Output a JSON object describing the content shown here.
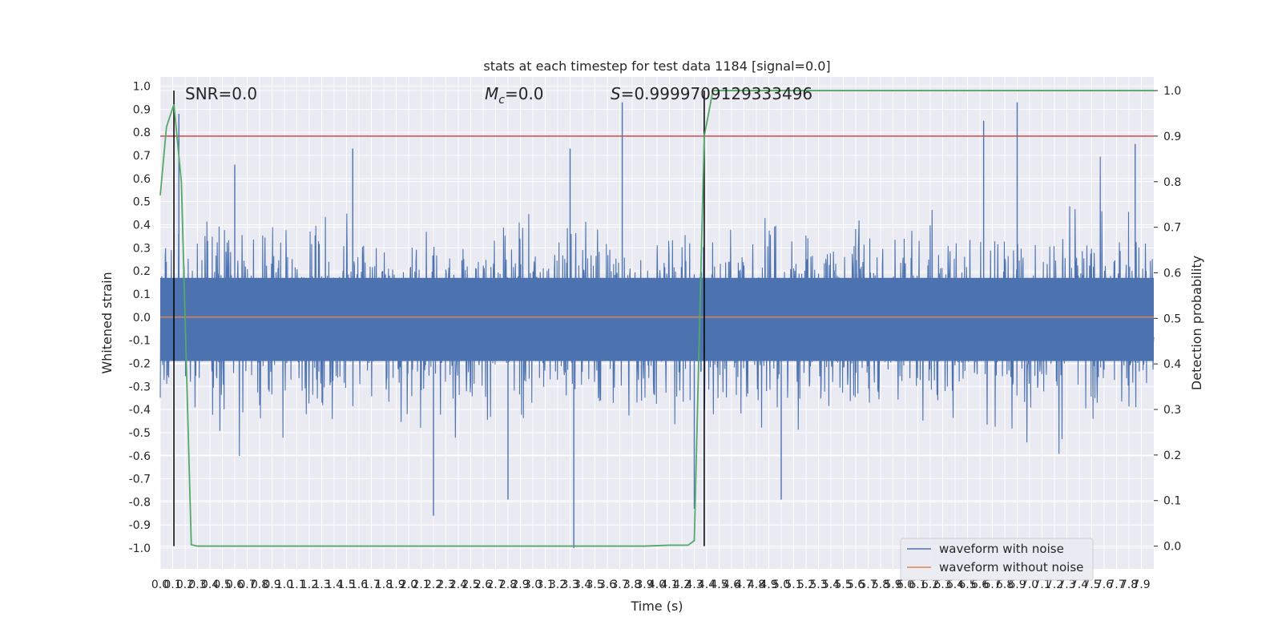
{
  "chart_data": {
    "type": "line",
    "title": "stats at each timestep for test data 1184 [signal=0.0]",
    "xlabel": "Time (s)",
    "ylabel_left": "Whitened strain",
    "ylabel_right": "Detection probability",
    "xlim": [
      0.0,
      8.0
    ],
    "ylim_left": [
      -1.09,
      1.04
    ],
    "ylim_right": [
      -0.05,
      1.03
    ],
    "x_ticks": [
      "0.0",
      "0.1",
      "0.2",
      "0.3",
      "0.4",
      "0.5",
      "0.6",
      "0.7",
      "0.8",
      "0.9",
      "1.0",
      "1.1",
      "1.2",
      "1.3",
      "1.4",
      "1.5",
      "1.6",
      "1.7",
      "1.8",
      "1.9",
      "2.0",
      "2.1",
      "2.2",
      "2.3",
      "2.4",
      "2.5",
      "2.6",
      "2.7",
      "2.8",
      "2.9",
      "3.0",
      "3.1",
      "3.2",
      "3.3",
      "3.4",
      "3.5",
      "3.6",
      "3.7",
      "3.8",
      "3.9",
      "4.0",
      "4.1",
      "4.2",
      "4.3",
      "4.4",
      "4.5",
      "4.6",
      "4.7",
      "4.8",
      "4.9",
      "5.0",
      "5.1",
      "5.2",
      "5.3",
      "5.4",
      "5.5",
      "5.6",
      "5.7",
      "5.8",
      "5.9",
      "6.0",
      "6.1",
      "6.2",
      "6.3",
      "6.4",
      "6.5",
      "6.6",
      "6.7",
      "6.8",
      "6.9",
      "7.0",
      "7.1",
      "7.2",
      "7.3",
      "7.4",
      "7.5",
      "7.6",
      "7.7",
      "7.8",
      "7.9"
    ],
    "y_ticks_left": [
      "1.0",
      "0.9",
      "0.8",
      "0.7",
      "0.6",
      "0.5",
      "0.4",
      "0.3",
      "0.2",
      "0.1",
      "0.0",
      "-0.1",
      "-0.2",
      "-0.3",
      "-0.4",
      "-0.5",
      "-0.6",
      "-0.7",
      "-0.8",
      "-0.9",
      "-1.0"
    ],
    "y_ticks_right": [
      "1.0",
      "0.9",
      "0.8",
      "0.7",
      "0.6",
      "0.5",
      "0.4",
      "0.3",
      "0.2",
      "0.1",
      "0.0"
    ],
    "annotations": {
      "snr": "SNR=0.0",
      "mc": "=0.0",
      "mc_symbol": "M",
      "mc_sub": "c",
      "s": "=0.9999709129333496",
      "s_symbol": "S"
    },
    "legend": {
      "placement": "lower right",
      "entries": [
        "waveform with noise",
        "waveform without noise"
      ]
    },
    "threshold_y_right": 0.9,
    "vertical_lines_x": [
      0.11,
      4.38
    ],
    "series": [
      {
        "name": "waveform with noise",
        "color": "#4c72b0",
        "kind": "noise",
        "x_range": [
          0.0,
          8.0
        ],
        "typical_envelope": [
          -0.42,
          0.42
        ],
        "extreme_peaks": [
          {
            "x": 0.15,
            "y": 0.88
          },
          {
            "x": 0.6,
            "y": 0.66
          },
          {
            "x": 1.55,
            "y": 0.73
          },
          {
            "x": 2.2,
            "y": -0.86
          },
          {
            "x": 2.8,
            "y": -0.79
          },
          {
            "x": 3.3,
            "y": 0.73
          },
          {
            "x": 3.33,
            "y": -1.0
          },
          {
            "x": 3.72,
            "y": 0.93
          },
          {
            "x": 4.3,
            "y": -0.83
          },
          {
            "x": 5.0,
            "y": -0.79
          },
          {
            "x": 6.63,
            "y": 0.85
          },
          {
            "x": 6.9,
            "y": 0.93
          },
          {
            "x": 7.85,
            "y": 0.75
          }
        ]
      },
      {
        "name": "waveform without noise",
        "color": "#dd8452",
        "x": [
          0.0,
          8.0
        ],
        "y": [
          0.0,
          0.0
        ]
      },
      {
        "name": "",
        "color": "#55a868",
        "axis": "right",
        "x": [
          0.0,
          0.05,
          0.11,
          0.17,
          0.25,
          0.3,
          3.9,
          4.1,
          4.25,
          4.3,
          4.38,
          4.45,
          8.0
        ],
        "y": [
          0.77,
          0.92,
          0.97,
          0.8,
          0.003,
          0.0,
          0.0,
          0.002,
          0.002,
          0.012,
          0.9,
          1.0,
          1.0
        ]
      }
    ],
    "threshold_color": "#c44e52",
    "vline_color": "#000000",
    "background": "#eaeaf2"
  }
}
